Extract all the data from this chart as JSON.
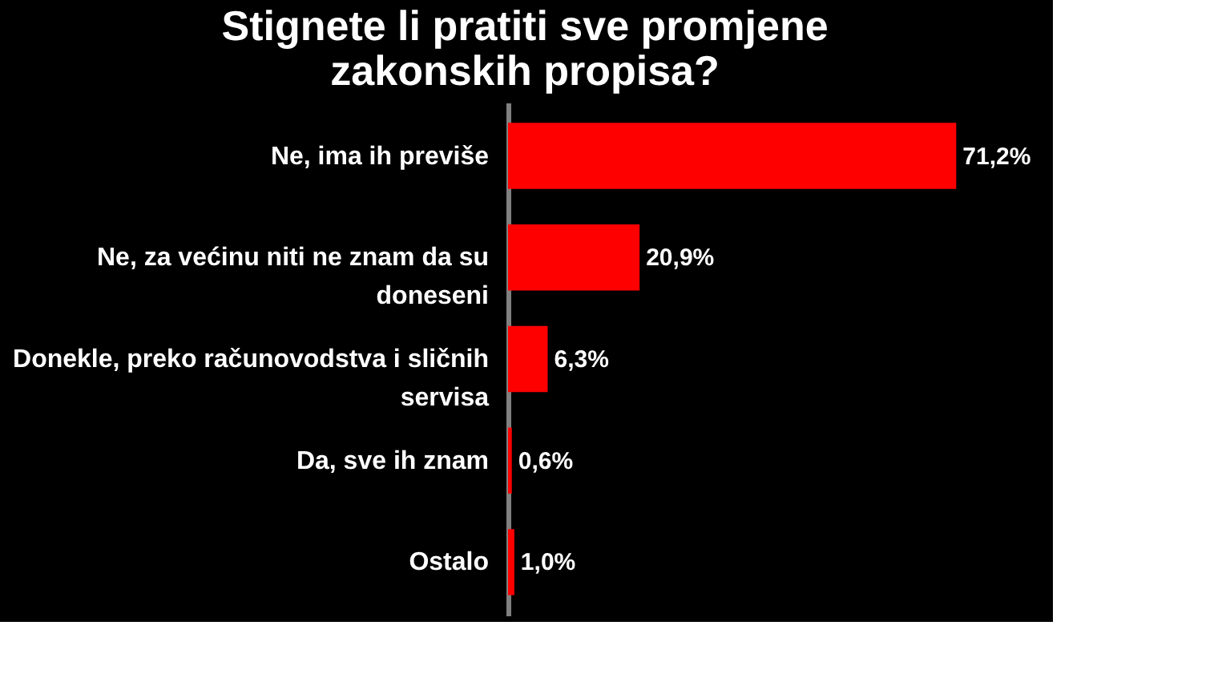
{
  "chart_data": {
    "type": "bar",
    "orientation": "horizontal",
    "title": "Stignete li pratiti sve promjene zakonskih propisa?",
    "categories": [
      "Ne, ima ih previše",
      "Ne, za većinu niti ne znam da su doneseni",
      "Donekle, preko računovodstva i sličnih servisa",
      "Da, sve ih znam",
      "Ostalo"
    ],
    "values": [
      71.2,
      20.9,
      6.3,
      0.6,
      1.0
    ],
    "value_labels": [
      "71,2%",
      "20,9%",
      "6,3%",
      "0,6%",
      "1,0%"
    ],
    "color": "#ff0000",
    "grid": false
  }
}
